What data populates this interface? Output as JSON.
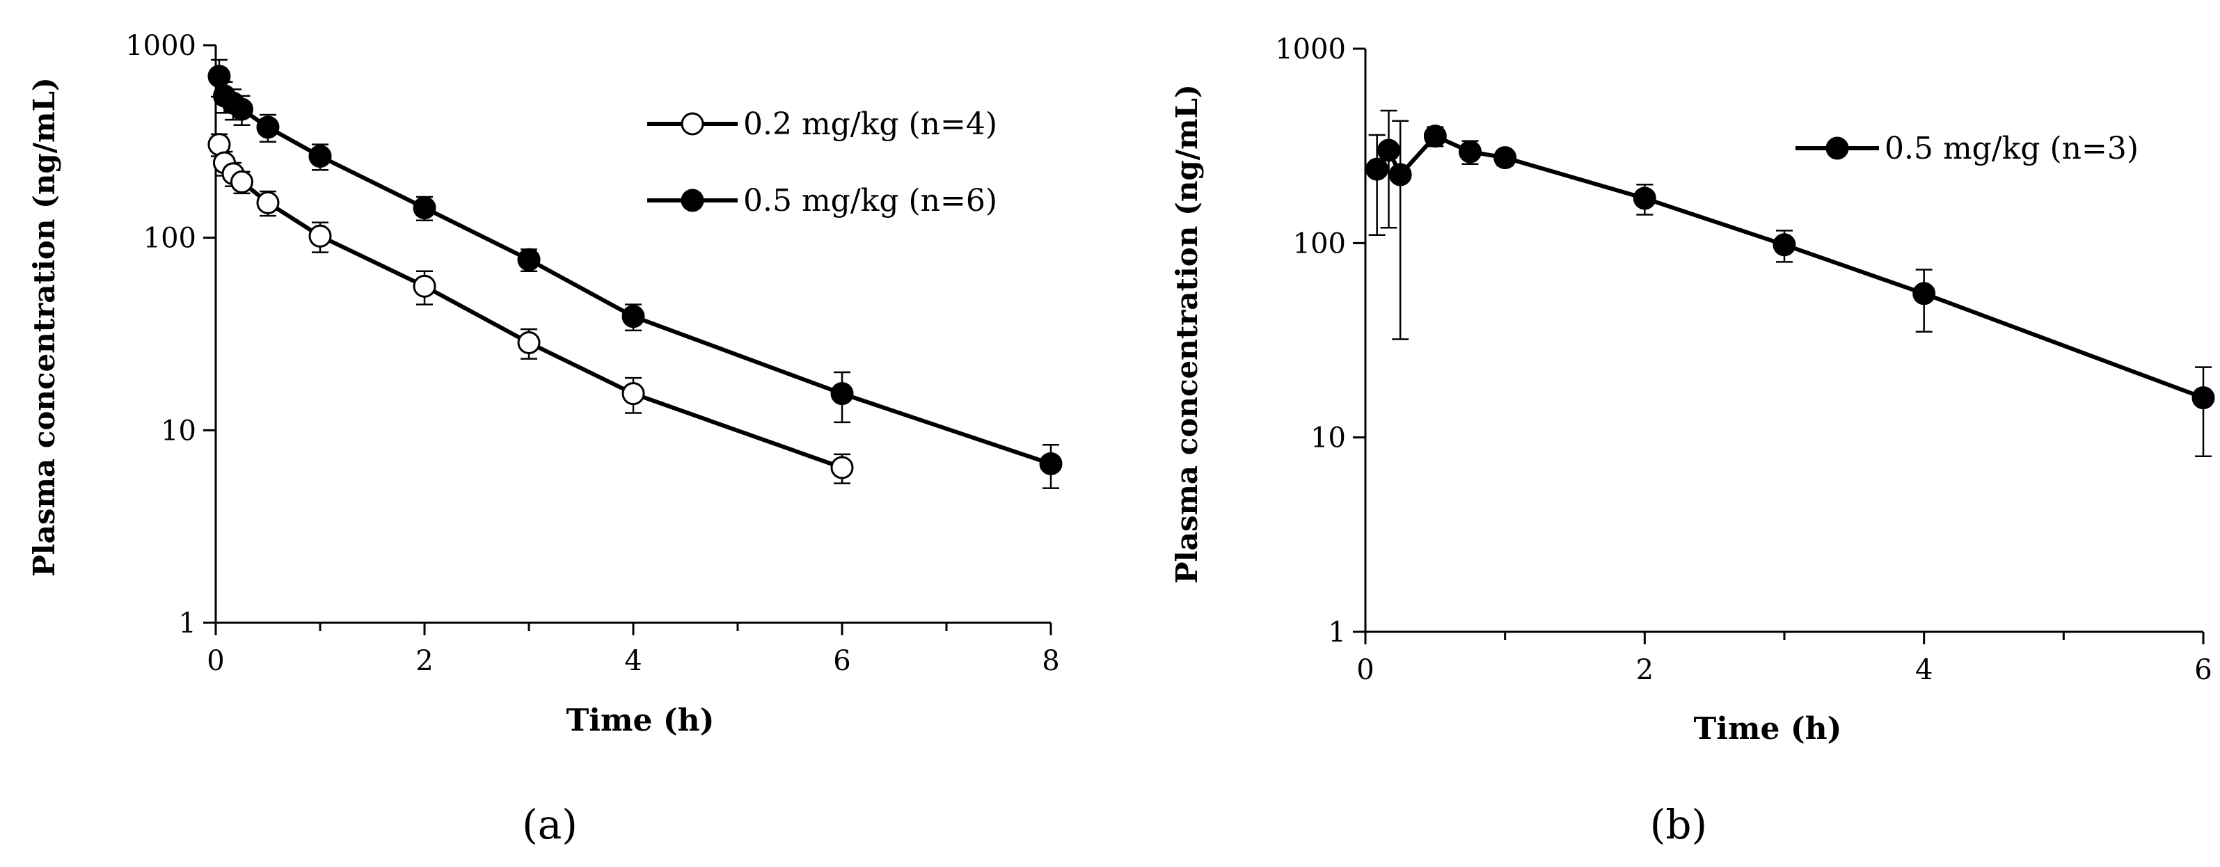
{
  "chart_data": [
    {
      "panel_label": "(a)",
      "type": "line",
      "xlabel": "Time (h)",
      "ylabel": "Plasma concentration (ng/mL)",
      "yscale": "log",
      "xlim": [
        0,
        8
      ],
      "ylim": [
        1,
        1000
      ],
      "xticks": [
        0,
        2,
        4,
        6,
        8
      ],
      "xtick_labels": [
        "0",
        "2",
        "4",
        "6",
        "8"
      ],
      "yticks": [
        1,
        10,
        100,
        1000
      ],
      "ytick_labels": [
        "1",
        "10",
        "100",
        "1000"
      ],
      "legend_position": "top-right",
      "series": [
        {
          "name": "0.2 mg/kg (n=4)",
          "marker": "open-circle",
          "x": [
            0.033,
            0.083,
            0.167,
            0.25,
            0.5,
            1,
            2,
            3,
            4,
            6
          ],
          "y": [
            305,
            245,
            215,
            195,
            152,
            102,
            56,
            28.5,
            15.5,
            6.4
          ],
          "err": [
            40,
            35,
            30,
            25,
            22,
            18,
            11,
            5,
            3.2,
            1.1
          ]
        },
        {
          "name": "0.5 mg/kg (n=6)",
          "marker": "filled-circle",
          "x": [
            0.033,
            0.083,
            0.167,
            0.25,
            0.5,
            1,
            2,
            3,
            4,
            6,
            8
          ],
          "y": [
            690,
            545,
            500,
            465,
            375,
            265,
            143,
            77,
            39,
            15.5,
            6.7
          ],
          "err": [
            150,
            100,
            90,
            80,
            60,
            40,
            20,
            10,
            6,
            4.5,
            1.7
          ]
        }
      ]
    },
    {
      "panel_label": "(b)",
      "type": "line",
      "xlabel": "Time (h)",
      "ylabel": "Plasma concentration (ng/mL)",
      "yscale": "log",
      "xlim": [
        0,
        6
      ],
      "ylim": [
        1,
        1000
      ],
      "xticks": [
        0,
        2,
        4,
        6
      ],
      "xtick_labels": [
        "0",
        "2",
        "4",
        "6"
      ],
      "yticks": [
        1,
        10,
        100,
        1000
      ],
      "ytick_labels": [
        "1",
        "10",
        "100",
        "1000"
      ],
      "legend_position": "top-right",
      "series": [
        {
          "name": "0.5 mg/kg (n=3)",
          "marker": "filled-circle",
          "x": [
            0.083,
            0.167,
            0.25,
            0.5,
            0.75,
            1,
            2,
            3,
            4,
            6
          ],
          "y": [
            240,
            300,
            225,
            355,
            295,
            275,
            170,
            98,
            55,
            16
          ],
          "err_up": [
            120,
            180,
            200,
            40,
            40,
            25,
            30,
            18,
            18,
            7
          ],
          "err_down": [
            130,
            180,
            193,
            40,
            40,
            25,
            30,
            18,
            20,
            8
          ]
        }
      ]
    }
  ]
}
